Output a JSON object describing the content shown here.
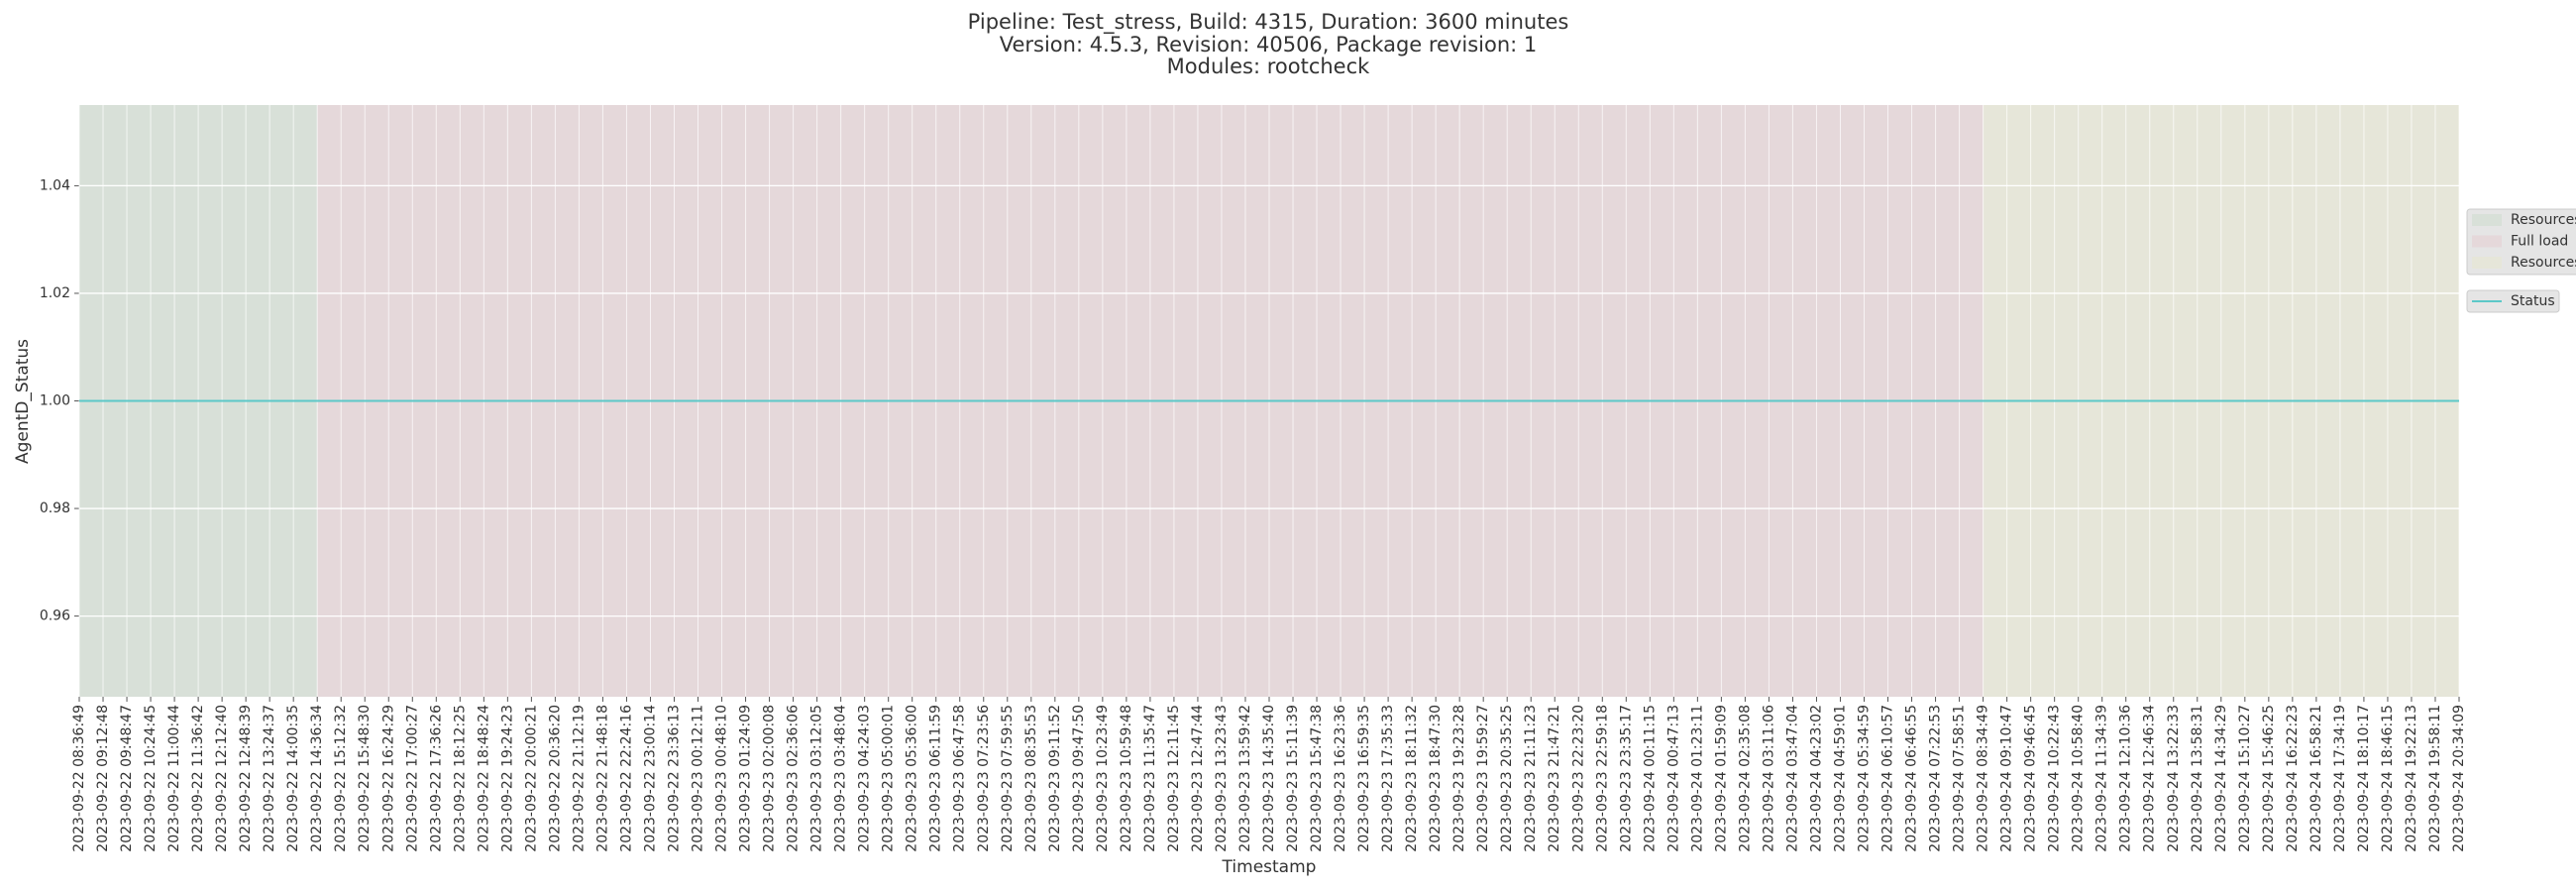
{
  "chart_data": {
    "type": "line",
    "title": [
      "Pipeline: Test_stress, Build: 4315, Duration: 3600 minutes",
      "Version: 4.5.3, Revision: 40506, Package revision: 1",
      "Modules: rootcheck"
    ],
    "xlabel": "Timestamp",
    "ylabel": "AgentD_Status",
    "categories": [
      "2023-09-22 08:36:49",
      "2023-09-22 09:12:48",
      "2023-09-22 09:48:47",
      "2023-09-22 10:24:45",
      "2023-09-22 11:00:44",
      "2023-09-22 11:36:42",
      "2023-09-22 12:12:40",
      "2023-09-22 12:48:39",
      "2023-09-22 13:24:37",
      "2023-09-22 14:00:35",
      "2023-09-22 14:36:34",
      "2023-09-22 15:12:32",
      "2023-09-22 15:48:30",
      "2023-09-22 16:24:29",
      "2023-09-22 17:00:27",
      "2023-09-22 17:36:26",
      "2023-09-22 18:12:25",
      "2023-09-22 18:48:24",
      "2023-09-22 19:24:23",
      "2023-09-22 20:00:21",
      "2023-09-22 20:36:20",
      "2023-09-22 21:12:19",
      "2023-09-22 21:48:18",
      "2023-09-22 22:24:16",
      "2023-09-22 23:00:14",
      "2023-09-22 23:36:13",
      "2023-09-23 00:12:11",
      "2023-09-23 00:48:10",
      "2023-09-23 01:24:09",
      "2023-09-23 02:00:08",
      "2023-09-23 02:36:06",
      "2023-09-23 03:12:05",
      "2023-09-23 03:48:04",
      "2023-09-23 04:24:03",
      "2023-09-23 05:00:01",
      "2023-09-23 05:36:00",
      "2023-09-23 06:11:59",
      "2023-09-23 06:47:58",
      "2023-09-23 07:23:56",
      "2023-09-23 07:59:55",
      "2023-09-23 08:35:53",
      "2023-09-23 09:11:52",
      "2023-09-23 09:47:50",
      "2023-09-23 10:23:49",
      "2023-09-23 10:59:48",
      "2023-09-23 11:35:47",
      "2023-09-23 12:11:45",
      "2023-09-23 12:47:44",
      "2023-09-23 13:23:43",
      "2023-09-23 13:59:42",
      "2023-09-23 14:35:40",
      "2023-09-23 15:11:39",
      "2023-09-23 15:47:38",
      "2023-09-23 16:23:36",
      "2023-09-23 16:59:35",
      "2023-09-23 17:35:33",
      "2023-09-23 18:11:32",
      "2023-09-23 18:47:30",
      "2023-09-23 19:23:28",
      "2023-09-23 19:59:27",
      "2023-09-23 20:35:25",
      "2023-09-23 21:11:23",
      "2023-09-23 21:47:21",
      "2023-09-23 22:23:20",
      "2023-09-23 22:59:18",
      "2023-09-23 23:35:17",
      "2023-09-24 00:11:15",
      "2023-09-24 00:47:13",
      "2023-09-24 01:23:11",
      "2023-09-24 01:59:09",
      "2023-09-24 02:35:08",
      "2023-09-24 03:11:06",
      "2023-09-24 03:47:04",
      "2023-09-24 04:23:02",
      "2023-09-24 04:59:01",
      "2023-09-24 05:34:59",
      "2023-09-24 06:10:57",
      "2023-09-24 06:46:55",
      "2023-09-24 07:22:53",
      "2023-09-24 07:58:51",
      "2023-09-24 08:34:49",
      "2023-09-24 09:10:47",
      "2023-09-24 09:46:45",
      "2023-09-24 10:22:43",
      "2023-09-24 10:58:40",
      "2023-09-24 11:34:39",
      "2023-09-24 12:10:36",
      "2023-09-24 12:46:34",
      "2023-09-24 13:22:33",
      "2023-09-24 13:58:31",
      "2023-09-24 14:34:29",
      "2023-09-24 15:10:27",
      "2023-09-24 15:46:25",
      "2023-09-24 16:22:23",
      "2023-09-24 16:58:21",
      "2023-09-24 17:34:19",
      "2023-09-24 18:10:17",
      "2023-09-24 18:46:15",
      "2023-09-24 19:22:13",
      "2023-09-24 19:58:11",
      "2023-09-24 20:34:09"
    ],
    "series": [
      {
        "name": "Status",
        "color": "#5cc8c8",
        "values": [
          1,
          1,
          1,
          1,
          1,
          1,
          1,
          1,
          1,
          1,
          1,
          1,
          1,
          1,
          1,
          1,
          1,
          1,
          1,
          1,
          1,
          1,
          1,
          1,
          1,
          1,
          1,
          1,
          1,
          1,
          1,
          1,
          1,
          1,
          1,
          1,
          1,
          1,
          1,
          1,
          1,
          1,
          1,
          1,
          1,
          1,
          1,
          1,
          1,
          1,
          1,
          1,
          1,
          1,
          1,
          1,
          1,
          1,
          1,
          1,
          1,
          1,
          1,
          1,
          1,
          1,
          1,
          1,
          1,
          1,
          1,
          1,
          1,
          1,
          1,
          1,
          1,
          1,
          1,
          1,
          1,
          1,
          1,
          1,
          1,
          1,
          1,
          1,
          1,
          1,
          1,
          1,
          1,
          1,
          1,
          1,
          1,
          1,
          1,
          1,
          1
        ]
      }
    ],
    "regions": [
      {
        "name": "Resources",
        "color": "#bad4ba",
        "start": "2023-09-22 08:36:49",
        "end": "2023-09-22 14:36:34"
      },
      {
        "name": "Full load",
        "color": "#e6bbc1",
        "start": "2023-09-22 14:36:34",
        "end": "2023-09-24 08:34:49"
      },
      {
        "name": "Resources",
        "color": "#e9e9bd",
        "start": "2023-09-24 08:34:49",
        "end": "2023-09-24 20:34:09"
      }
    ],
    "ylim": [
      0.945,
      1.055
    ],
    "yticks": [
      0.96,
      0.98,
      {
        "value": 1.0,
        "label": "1.00"
      },
      1.02,
      1.04
    ],
    "grid": true
  }
}
